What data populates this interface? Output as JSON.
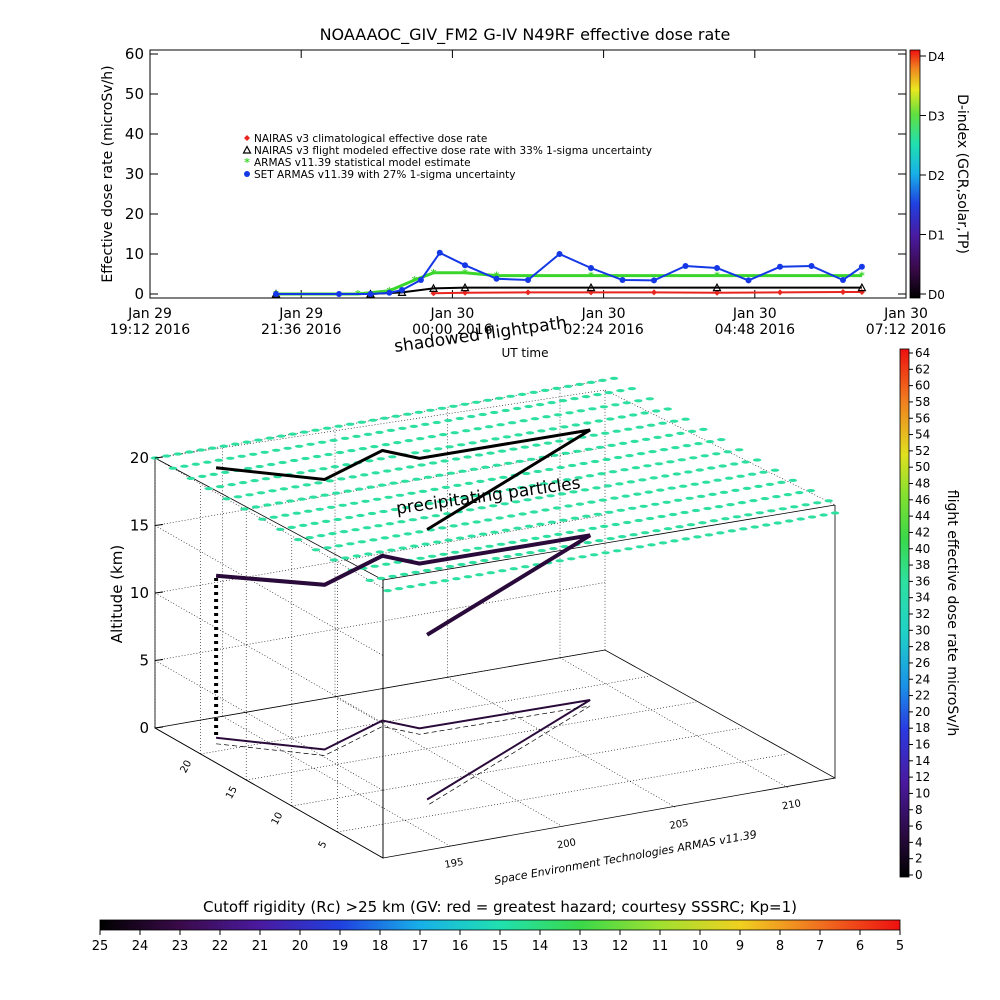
{
  "title": "NOAAAOC_GIV_FM2 G-IV    N49RF   effective dose rate",
  "colors": {
    "nairas_clim": "#e8261f",
    "nairas_flight": "#000000",
    "armas_stat": "#3ad62b",
    "set_armas": "#1438e6",
    "track_3d": "#2a0a3a",
    "particles": "#2ee0a0"
  },
  "chart_data": [
    {
      "type": "line",
      "id": "dose-rate-timeseries",
      "title": "NOAAAOC_GIV_FM2 G-IV    N49RF   effective dose rate",
      "ylabel": "Effective dose rate (microSv/h)",
      "xlabel": "UT time",
      "ylim": [
        0,
        60
      ],
      "yticks": [
        "0",
        "10",
        "20",
        "30",
        "40",
        "50",
        "60"
      ],
      "xticks": [
        {
          "line1": "Jan 29",
          "line2": "19:12 2016"
        },
        {
          "line1": "Jan 29",
          "line2": "21:36 2016"
        },
        {
          "line1": "Jan 30",
          "line2": "00:00 2016"
        },
        {
          "line1": "Jan 30",
          "line2": "02:24 2016"
        },
        {
          "line1": "Jan 30",
          "line2": "04:48 2016"
        },
        {
          "line1": "Jan 30",
          "line2": "07:12 2016"
        }
      ],
      "x_hours_range": [
        0,
        12
      ],
      "legend": [
        {
          "label": "NAIRAS v3 climatological effective dose rate",
          "marker": "diamond",
          "color": "#e8261f"
        },
        {
          "label": "NAIRAS v3 flight modeled effective dose rate with 33% 1-sigma uncertainty",
          "marker": "triangle",
          "color": "#000000"
        },
        {
          "label": "ARMAS v11.39 statistical model estimate",
          "marker": "star",
          "color": "#3ad62b"
        },
        {
          "label": "SET ARMAS v11.39 with 27% 1-sigma uncertainty",
          "marker": "circle",
          "color": "#1438e6"
        }
      ],
      "legend_position": "upper-left",
      "series": [
        {
          "id": "nairas_clim",
          "x_hours": [
            4.5,
            5.0,
            6.0,
            7.0,
            8.0,
            9.0,
            10.0,
            11.0,
            11.3
          ],
          "values": [
            0.2,
            0.3,
            0.4,
            0.4,
            0.4,
            0.3,
            0.4,
            0.5,
            0.5
          ]
        },
        {
          "id": "nairas_flight",
          "x_hours": [
            2.0,
            3.5,
            4.0,
            4.5,
            5.0,
            7.0,
            9.0,
            11.3
          ],
          "values": [
            0,
            0,
            0.4,
            1.4,
            1.6,
            1.6,
            1.6,
            1.6
          ]
        },
        {
          "id": "armas_stat",
          "x_hours": [
            2.0,
            3.3,
            3.8,
            4.2,
            4.5,
            5.0,
            5.5,
            7.0,
            9.0,
            11.3
          ],
          "values": [
            0,
            0,
            0.8,
            3.5,
            5.3,
            5.3,
            4.6,
            4.6,
            4.6,
            4.6
          ]
        },
        {
          "id": "set_armas",
          "x_hours": [
            2.0,
            3.0,
            3.5,
            3.8,
            4.0,
            4.3,
            4.6,
            5.0,
            5.5,
            6.0,
            6.5,
            7.0,
            7.5,
            8.0,
            8.5,
            9.0,
            9.5,
            10.0,
            10.5,
            11.0,
            11.3
          ],
          "values": [
            0,
            0,
            0,
            0.3,
            1.0,
            3.5,
            10.3,
            7.2,
            3.8,
            3.5,
            10.0,
            6.5,
            3.5,
            3.4,
            7.0,
            6.5,
            3.4,
            6.8,
            7.0,
            3.5,
            6.8
          ]
        }
      ]
    },
    {
      "type": "heatmap",
      "id": "d-index-colorbar",
      "ylabel": "D-index (GCR,solar,TP)",
      "tick_labels": [
        "D0",
        "D1",
        "D2",
        "D3",
        "D4"
      ]
    },
    {
      "type": "scatter",
      "id": "flight-path-3d",
      "zlabel": "Altitude (km)",
      "zlim": [
        0,
        20
      ],
      "zticks": [
        "0",
        "5",
        "10",
        "15",
        "20"
      ],
      "lat_ticks": [
        "5",
        "10",
        "15",
        "20"
      ],
      "lon_ticks": [
        "195",
        "200",
        "205",
        "210"
      ],
      "annotations": [
        "shadowed flightpath",
        "precipitating particles"
      ],
      "footer": "Space Environment Technologies ARMAS v11.39",
      "path_points": [
        {
          "lon": 193.5,
          "lat": 22.0,
          "alt": 0.2
        },
        {
          "lon": 193.5,
          "lat": 22.0,
          "alt": 12.0
        },
        {
          "lon": 196.5,
          "lat": 17.5,
          "alt": 12.2
        },
        {
          "lon": 200.2,
          "lat": 20.3,
          "alt": 12.2
        },
        {
          "lon": 201.0,
          "lat": 18.2,
          "alt": 12.2
        },
        {
          "lon": 208.5,
          "lat": 18.0,
          "alt": 12.2
        },
        {
          "lon": 197.0,
          "lat": 7.5,
          "alt": 12.2
        }
      ]
    },
    {
      "type": "heatmap",
      "id": "flight-dose-colorbar",
      "ylabel": "flight effective dose rate microSv/h",
      "tick_labels": [
        "0",
        "2",
        "4",
        "6",
        "8",
        "10",
        "12",
        "14",
        "16",
        "18",
        "20",
        "22",
        "24",
        "26",
        "28",
        "30",
        "32",
        "34",
        "36",
        "38",
        "40",
        "42",
        "44",
        "46",
        "48",
        "50",
        "52",
        "54",
        "56",
        "58",
        "60",
        "62",
        "64"
      ]
    },
    {
      "type": "heatmap",
      "id": "cutoff-rigidity-colorbar",
      "title": "Cutoff rigidity (Rc) >25 km (GV: red = greatest hazard; courtesy SSSRC; Kp=1)",
      "tick_labels": [
        "25",
        "24",
        "23",
        "22",
        "21",
        "20",
        "19",
        "18",
        "17",
        "16",
        "15",
        "14",
        "13",
        "12",
        "11",
        "10",
        "9",
        "8",
        "7",
        "6",
        "5"
      ]
    }
  ]
}
